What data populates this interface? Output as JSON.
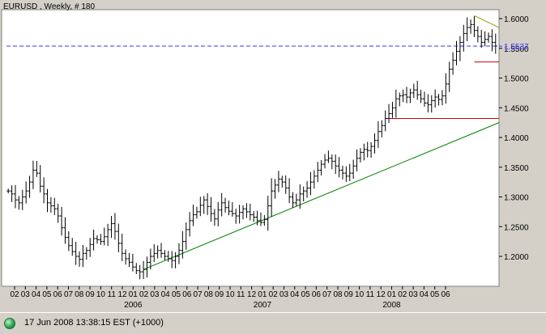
{
  "chart_data": {
    "type": "ohlc",
    "title": "EURUSD , Weekly, # 180",
    "symbol": "EURUSD",
    "timeframe": "Weekly",
    "y_ticks": [
      "1.6000",
      "1.5500",
      "1.5000",
      "1.4500",
      "1.4000",
      "1.3500",
      "1.3000",
      "1.2500",
      "1.2000"
    ],
    "ylim": [
      1.17,
      1.615
    ],
    "current_price_label": "1.5537",
    "current_price": 1.5537,
    "month_ticks": [
      "02",
      "03",
      "04",
      "05",
      "06",
      "07",
      "08",
      "09",
      "10",
      "11",
      "12",
      "01",
      "02",
      "03",
      "04",
      "05",
      "06",
      "07",
      "08",
      "09",
      "10",
      "11",
      "12",
      "01",
      "02",
      "03",
      "04",
      "05",
      "06",
      "07",
      "08",
      "09",
      "10",
      "11",
      "12",
      "01",
      "02",
      "03",
      "04",
      "05",
      "06"
    ],
    "year_labels": [
      {
        "label": "2006",
        "index": 11
      },
      {
        "label": "2007",
        "index": 23
      },
      {
        "label": "2008",
        "index": 35
      }
    ],
    "weekly_close": [
      1.31,
      1.305,
      1.295,
      1.29,
      1.3,
      1.31,
      1.325,
      1.345,
      1.34,
      1.318,
      1.305,
      1.29,
      1.285,
      1.28,
      1.268,
      1.248,
      1.232,
      1.218,
      1.208,
      1.2,
      1.195,
      1.205,
      1.21,
      1.22,
      1.23,
      1.228,
      1.225,
      1.233,
      1.245,
      1.255,
      1.242,
      1.222,
      1.205,
      1.196,
      1.19,
      1.182,
      1.176,
      1.174,
      1.178,
      1.19,
      1.2,
      1.205,
      1.21,
      1.205,
      1.2,
      1.196,
      1.193,
      1.2,
      1.21,
      1.225,
      1.245,
      1.26,
      1.27,
      1.275,
      1.286,
      1.295,
      1.284,
      1.272,
      1.263,
      1.278,
      1.29,
      1.282,
      1.276,
      1.272,
      1.268,
      1.274,
      1.28,
      1.275,
      1.27,
      1.266,
      1.26,
      1.257,
      1.262,
      1.285,
      1.31,
      1.32,
      1.33,
      1.325,
      1.315,
      1.3,
      1.29,
      1.295,
      1.305,
      1.31,
      1.315,
      1.325,
      1.335,
      1.345,
      1.355,
      1.362,
      1.365,
      1.36,
      1.352,
      1.345,
      1.34,
      1.335,
      1.34,
      1.352,
      1.365,
      1.375,
      1.38,
      1.378,
      1.385,
      1.395,
      1.41,
      1.42,
      1.432,
      1.44,
      1.45,
      1.465,
      1.47,
      1.472,
      1.468,
      1.475,
      1.48,
      1.472,
      1.465,
      1.458,
      1.455,
      1.462,
      1.468,
      1.464,
      1.47,
      1.49,
      1.515,
      1.53,
      1.545,
      1.56,
      1.575,
      1.585,
      1.59,
      1.58,
      1.57,
      1.56,
      1.565,
      1.57,
      1.56,
      1.5537
    ],
    "horizontal_lines": [
      {
        "kind": "support",
        "value": 1.527,
        "color": "#cc0000"
      },
      {
        "kind": "support",
        "value": 1.432,
        "color": "#cc0000"
      },
      {
        "kind": "current",
        "value": 1.5537,
        "color": "#3333ff"
      }
    ],
    "trend_lines": [
      {
        "color": "#008000",
        "from": {
          "week": 38,
          "value": 1.178
        },
        "to": {
          "week": 144,
          "value": 1.425
        }
      },
      {
        "color": "#999900",
        "from": {
          "week": 131,
          "value": 1.605
        },
        "to": {
          "week": 144,
          "value": 1.585
        }
      }
    ],
    "grid": false,
    "legend": "none"
  },
  "colors": {
    "plot_bg": "#ffffff",
    "frame_bg": "#d4d0c8",
    "bars": "#000000",
    "support": "#cc0000",
    "trend": "#008000",
    "resistance": "#999900",
    "current": "#3333ff",
    "status_dot": "#1fa34a"
  },
  "status": {
    "text": "17 Jun 2008 13:38:15   EST (+1000)",
    "icon": "status-dot-icon"
  }
}
